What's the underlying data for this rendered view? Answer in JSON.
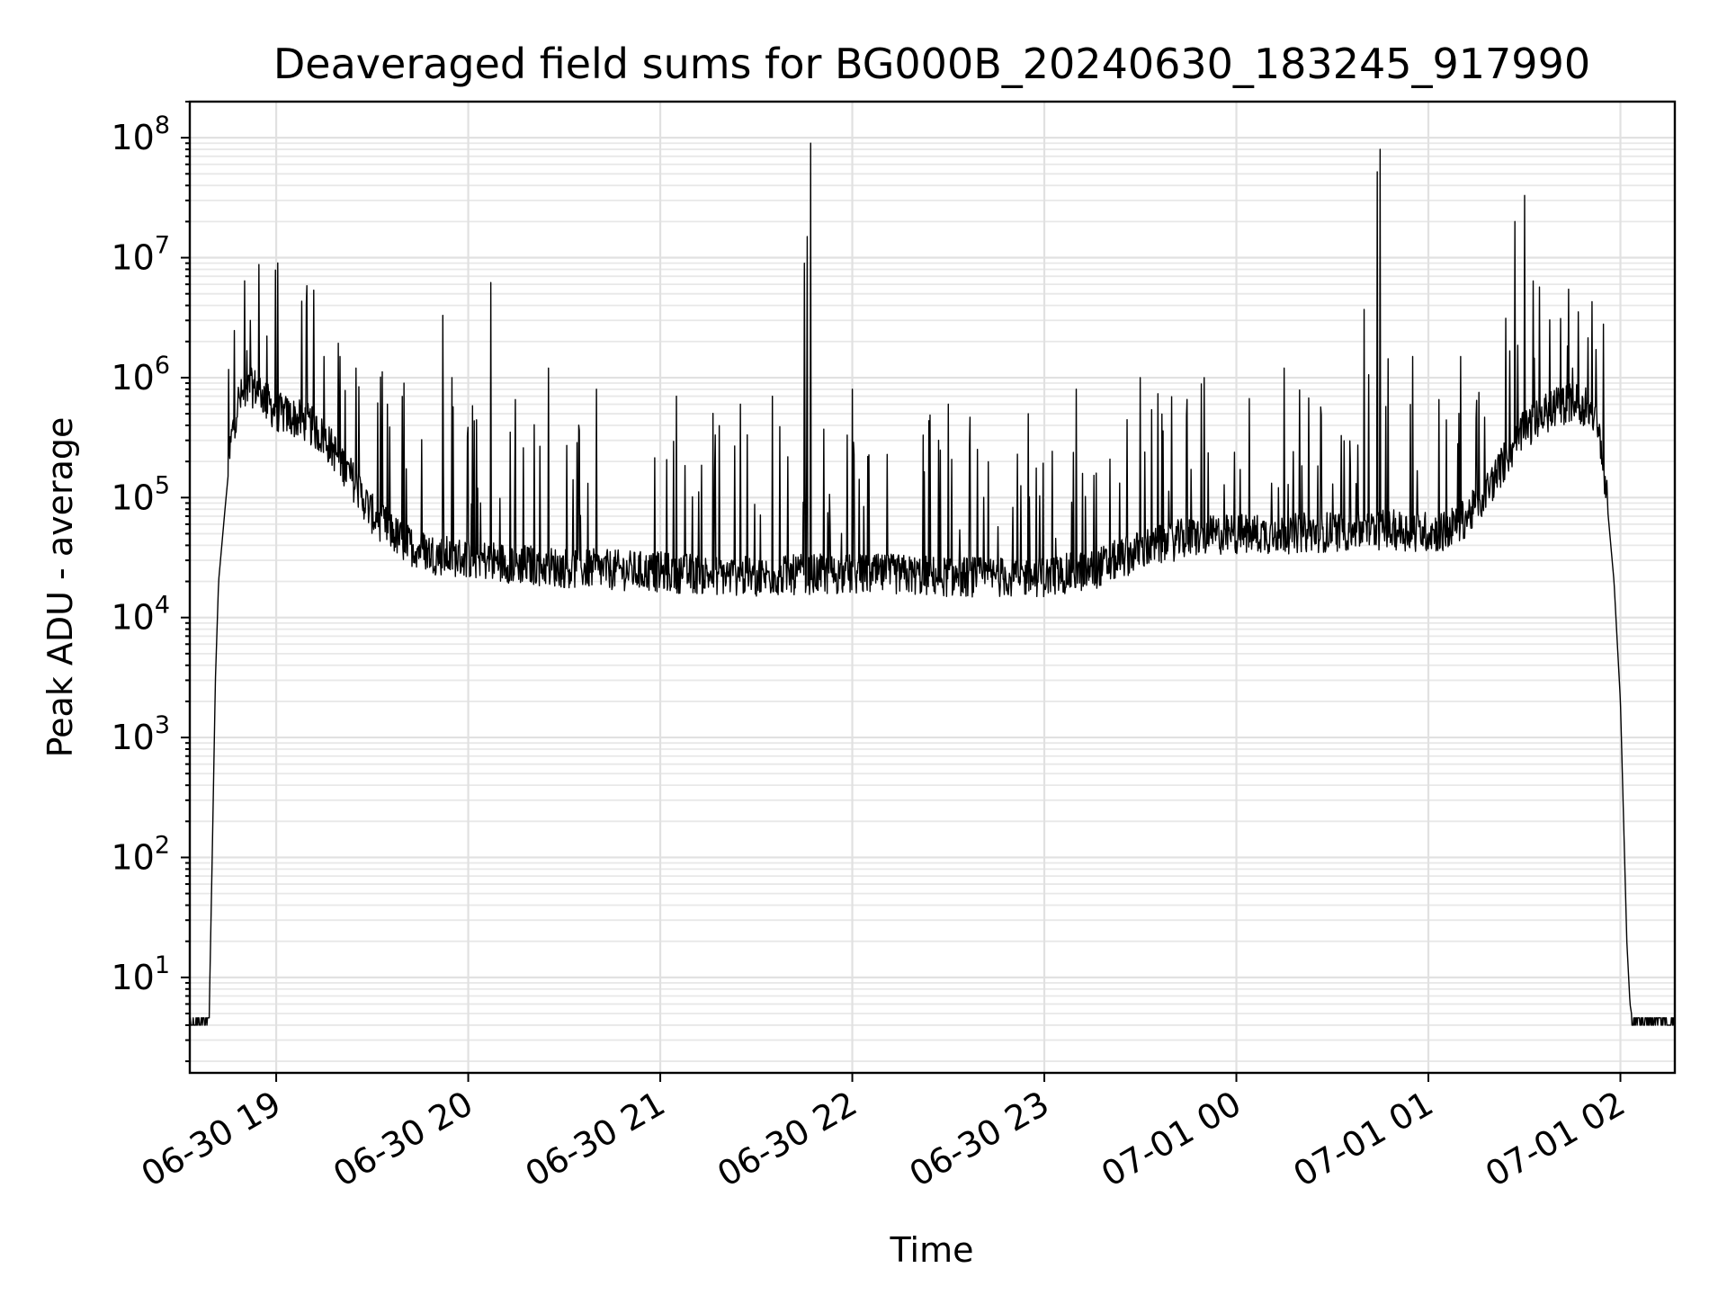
{
  "chart_data": {
    "type": "line",
    "title": "Deaveraged field sums for BG000B_20240630_183245_917990",
    "xlabel": "Time",
    "ylabel": "Peak ADU - average",
    "y_scale": "log",
    "ylim": [
      1.6,
      200000000
    ],
    "xlim": [
      "2024-06-30 18:33",
      "2024-07-01 02:17"
    ],
    "grid": true,
    "grid_minor": true,
    "legend": "none",
    "line_color": "#000000",
    "x_ticks": [
      {
        "value": "2024-06-30 19:00",
        "label": "06-30 19"
      },
      {
        "value": "2024-06-30 20:00",
        "label": "06-30 20"
      },
      {
        "value": "2024-06-30 21:00",
        "label": "06-30 21"
      },
      {
        "value": "2024-06-30 22:00",
        "label": "06-30 22"
      },
      {
        "value": "2024-06-30 23:00",
        "label": "06-30 23"
      },
      {
        "value": "2024-07-01 00:00",
        "label": "07-01 00"
      },
      {
        "value": "2024-07-01 01:00",
        "label": "07-01 01"
      },
      {
        "value": "2024-07-01 02:00",
        "label": "07-01 02"
      }
    ],
    "y_ticks": [
      {
        "value": 10,
        "base": "10",
        "exp": "1"
      },
      {
        "value": 100,
        "base": "10",
        "exp": "2"
      },
      {
        "value": 1000,
        "base": "10",
        "exp": "3"
      },
      {
        "value": 10000,
        "base": "10",
        "exp": "4"
      },
      {
        "value": 100000,
        "base": "10",
        "exp": "5"
      },
      {
        "value": 1000000,
        "base": "10",
        "exp": "6"
      },
      {
        "value": 10000000,
        "base": "10",
        "exp": "7"
      },
      {
        "value": 100000000,
        "base": "10",
        "exp": "8"
      }
    ],
    "series": [
      {
        "x": [
          "2024-06-30 18:33",
          "2024-06-30 18:39",
          "2024-06-30 18:40",
          "2024-06-30 18:41",
          "2024-06-30 18:42",
          "2024-06-30 18:44",
          "2024-06-30 18:46",
          "2024-06-30 18:48",
          "2024-06-30 18:51",
          "2024-06-30 18:53",
          "2024-06-30 18:55",
          "2024-06-30 18:57",
          "2024-06-30 19:00",
          "2024-06-30 19:05",
          "2024-06-30 19:10",
          "2024-06-30 19:15",
          "2024-06-30 19:20",
          "2024-06-30 19:25",
          "2024-06-30 19:30",
          "2024-06-30 19:40",
          "2024-06-30 19:50",
          "2024-06-30 20:00",
          "2024-06-30 20:15",
          "2024-06-30 20:30",
          "2024-06-30 20:45",
          "2024-06-30 21:00",
          "2024-06-30 21:15",
          "2024-06-30 21:30",
          "2024-06-30 21:45",
          "2024-06-30 22:00",
          "2024-06-30 22:15",
          "2024-06-30 22:30",
          "2024-06-30 22:45",
          "2024-06-30 23:00",
          "2024-06-30 23:15",
          "2024-06-30 23:30",
          "2024-06-30 23:45",
          "2024-07-01 00:00",
          "2024-07-01 00:15",
          "2024-07-01 00:30",
          "2024-07-01 00:45",
          "2024-07-01 01:00",
          "2024-07-01 01:05",
          "2024-07-01 01:10",
          "2024-07-01 01:15",
          "2024-07-01 01:20",
          "2024-07-01 01:25",
          "2024-07-01 01:30",
          "2024-07-01 01:35",
          "2024-07-01 01:40",
          "2024-07-01 01:45",
          "2024-07-01 01:50",
          "2024-07-01 01:52",
          "2024-07-01 01:54",
          "2024-07-01 01:56",
          "2024-07-01 01:58",
          "2024-07-01 02:00",
          "2024-07-01 02:01",
          "2024-07-01 02:02",
          "2024-07-01 02:03",
          "2024-07-01 02:04",
          "2024-07-01 02:05",
          "2024-07-01 02:17"
        ],
        "y": [
          4,
          4,
          100,
          3000,
          20000,
          80000,
          300000,
          600000,
          750000,
          800000,
          750000,
          600000,
          500000,
          450000,
          400000,
          300000,
          200000,
          120000,
          70000,
          40000,
          32000,
          30000,
          27000,
          25000,
          24000,
          23000,
          22000,
          21000,
          22000,
          22000,
          22000,
          21000,
          21000,
          21000,
          24000,
          35000,
          45000,
          48000,
          48000,
          50000,
          52000,
          50000,
          50000,
          60000,
          80000,
          130000,
          220000,
          350000,
          450000,
          550000,
          600000,
          550000,
          450000,
          250000,
          80000,
          20000,
          2000,
          200,
          20,
          6,
          4,
          4,
          4
        ]
      }
    ],
    "spikes": [
      {
        "x": "2024-06-30 18:52",
        "y": 3000000
      },
      {
        "x": "2024-06-30 19:15",
        "y": 1500000
      },
      {
        "x": "2024-06-30 19:20",
        "y": 1500000
      },
      {
        "x": "2024-06-30 19:25",
        "y": 1200000
      },
      {
        "x": "2024-06-30 19:40",
        "y": 900000
      },
      {
        "x": "2024-06-30 19:52",
        "y": 3300000
      },
      {
        "x": "2024-06-30 19:55",
        "y": 1000000
      },
      {
        "x": "2024-06-30 20:07",
        "y": 6200000
      },
      {
        "x": "2024-06-30 20:25",
        "y": 1200000
      },
      {
        "x": "2024-06-30 20:40",
        "y": 800000
      },
      {
        "x": "2024-06-30 21:05",
        "y": 700000
      },
      {
        "x": "2024-06-30 21:25",
        "y": 600000
      },
      {
        "x": "2024-06-30 21:35",
        "y": 700000
      },
      {
        "x": "2024-06-30 21:45",
        "y": 9000000
      },
      {
        "x": "2024-06-30 21:46",
        "y": 15000000
      },
      {
        "x": "2024-06-30 21:47",
        "y": 90000000
      },
      {
        "x": "2024-06-30 22:00",
        "y": 800000
      },
      {
        "x": "2024-06-30 22:30",
        "y": 600000
      },
      {
        "x": "2024-06-30 22:55",
        "y": 500000
      },
      {
        "x": "2024-06-30 23:10",
        "y": 800000
      },
      {
        "x": "2024-06-30 23:30",
        "y": 1000000
      },
      {
        "x": "2024-06-30 23:50",
        "y": 1000000
      },
      {
        "x": "2024-07-01 00:15",
        "y": 1200000
      },
      {
        "x": "2024-07-01 00:40",
        "y": 3700000
      },
      {
        "x": "2024-07-01 00:44",
        "y": 52000000
      },
      {
        "x": "2024-07-01 00:45",
        "y": 80000000
      },
      {
        "x": "2024-07-01 00:55",
        "y": 1500000
      },
      {
        "x": "2024-07-01 01:10",
        "y": 1500000
      },
      {
        "x": "2024-07-01 01:27",
        "y": 20000000
      },
      {
        "x": "2024-07-01 01:30",
        "y": 33000000
      },
      {
        "x": "2024-07-01 01:45",
        "y": 1200000
      }
    ]
  }
}
